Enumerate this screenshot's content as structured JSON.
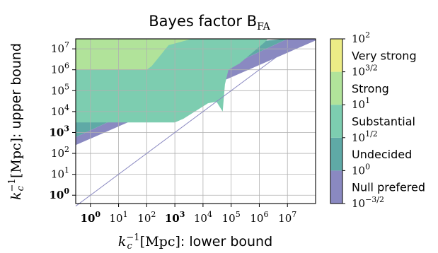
{
  "chart_data": {
    "type": "contour",
    "title": "Bayes factor B",
    "title_subscript": "FA",
    "xlabel": {
      "symbol": "k",
      "symbol_sub": "c",
      "symbol_sup": "−1",
      "unit": "[Mpc]",
      "text": ": lower bound"
    },
    "ylabel": {
      "symbol": "k",
      "symbol_sub": "c",
      "symbol_sup": "−1",
      "unit": "[Mpc]",
      "text": ": upper bound"
    },
    "x_scale": "log10",
    "y_scale": "log10",
    "xlim": [
      0.3,
      100000000.0
    ],
    "ylim": [
      0.4,
      30000000.0
    ],
    "x_ticks": [
      {
        "base": "10",
        "exp": "0",
        "bold": true
      },
      {
        "base": "10",
        "exp": "1",
        "bold": false
      },
      {
        "base": "10",
        "exp": "2",
        "bold": false
      },
      {
        "base": "10",
        "exp": "3",
        "bold": true
      },
      {
        "base": "10",
        "exp": "4",
        "bold": false
      },
      {
        "base": "10",
        "exp": "5",
        "bold": false
      },
      {
        "base": "10",
        "exp": "6",
        "bold": false
      },
      {
        "base": "10",
        "exp": "7",
        "bold": false
      }
    ],
    "y_ticks": [
      {
        "base": "10",
        "exp": "0",
        "bold": true
      },
      {
        "base": "10",
        "exp": "1",
        "bold": false
      },
      {
        "base": "10",
        "exp": "2",
        "bold": false
      },
      {
        "base": "10",
        "exp": "3",
        "bold": true
      },
      {
        "base": "10",
        "exp": "4",
        "bold": false
      },
      {
        "base": "10",
        "exp": "5",
        "bold": false
      },
      {
        "base": "10",
        "exp": "6",
        "bold": false
      },
      {
        "base": "10",
        "exp": "7",
        "bold": false
      }
    ],
    "grid": true,
    "diagonal": "x = y",
    "levels": [
      {
        "name": "Null prefered",
        "range": [
          "10^-3/2",
          "10^0"
        ],
        "color": "#8a89c1"
      },
      {
        "name": "Undecided",
        "range": [
          "10^0",
          "10^1/2"
        ],
        "color": "#5fa9a6"
      },
      {
        "name": "Substantial",
        "range": [
          "10^1/2",
          "10^1"
        ],
        "color": "#7dcdb0"
      },
      {
        "name": "Strong",
        "range": [
          "10^1",
          "10^3/2"
        ],
        "color": "#b1e39a"
      },
      {
        "name": "Very strong",
        "range": [
          "10^3/2",
          "10^2"
        ],
        "color": "#ecec86"
      }
    ],
    "colorbar": {
      "tick_labels": [
        {
          "base": "10",
          "exp": "2"
        },
        {
          "base": "10",
          "exp": "3/2"
        },
        {
          "base": "10",
          "exp": "1"
        },
        {
          "base": "10",
          "exp": "1/2"
        },
        {
          "base": "10",
          "exp": "0"
        },
        {
          "base": "10",
          "exp": "−3/2"
        }
      ]
    },
    "regions": [
      {
        "level": "Null prefered",
        "points": [
          [
            0.3,
            250.0
          ],
          [
            0.3,
            600.0
          ],
          [
            10000000.0,
            30000000.0
          ],
          [
            100000000.0,
            30000000.0
          ],
          [
            100000000.0,
            25000000.0
          ]
        ]
      },
      {
        "level": "Undecided",
        "points": [
          [
            0.3,
            600.0
          ],
          [
            0.3,
            24000000.0
          ],
          [
            600000.0,
            24000000.0
          ],
          [
            2000000.0,
            25000000.0
          ],
          [
            7000000.0,
            30000000.0
          ],
          [
            10000000.0,
            30000000.0
          ]
        ]
      },
      {
        "level": "Substantial",
        "points": [
          [
            0.3,
            3000.0
          ],
          [
            0.3,
            24000000.0
          ],
          [
            500.0,
            24000000.0
          ],
          [
            4000.0,
            30000000.0
          ],
          [
            2000000.0,
            30000000.0
          ],
          [
            1500000.0,
            20000000.0
          ],
          [
            200000.0,
            2000000.0
          ],
          [
            80000.0,
            1000000.0
          ],
          [
            60000.0,
            200000.0
          ],
          [
            50000.0,
            10000.0
          ],
          [
            30000.0,
            30000.0
          ],
          [
            15000.0,
            25000.0
          ],
          [
            2000.0,
            4500.0
          ],
          [
            1000.0,
            3000.0
          ]
        ]
      },
      {
        "level": "Strong",
        "points": [
          [
            0.3,
            1000000.0
          ],
          [
            0.3,
            30000000.0
          ],
          [
            4000.0,
            30000000.0
          ],
          [
            600.0,
            15000000.0
          ],
          [
            150.0,
            1500000.0
          ],
          [
            100.0,
            1000000.0
          ]
        ]
      }
    ]
  }
}
